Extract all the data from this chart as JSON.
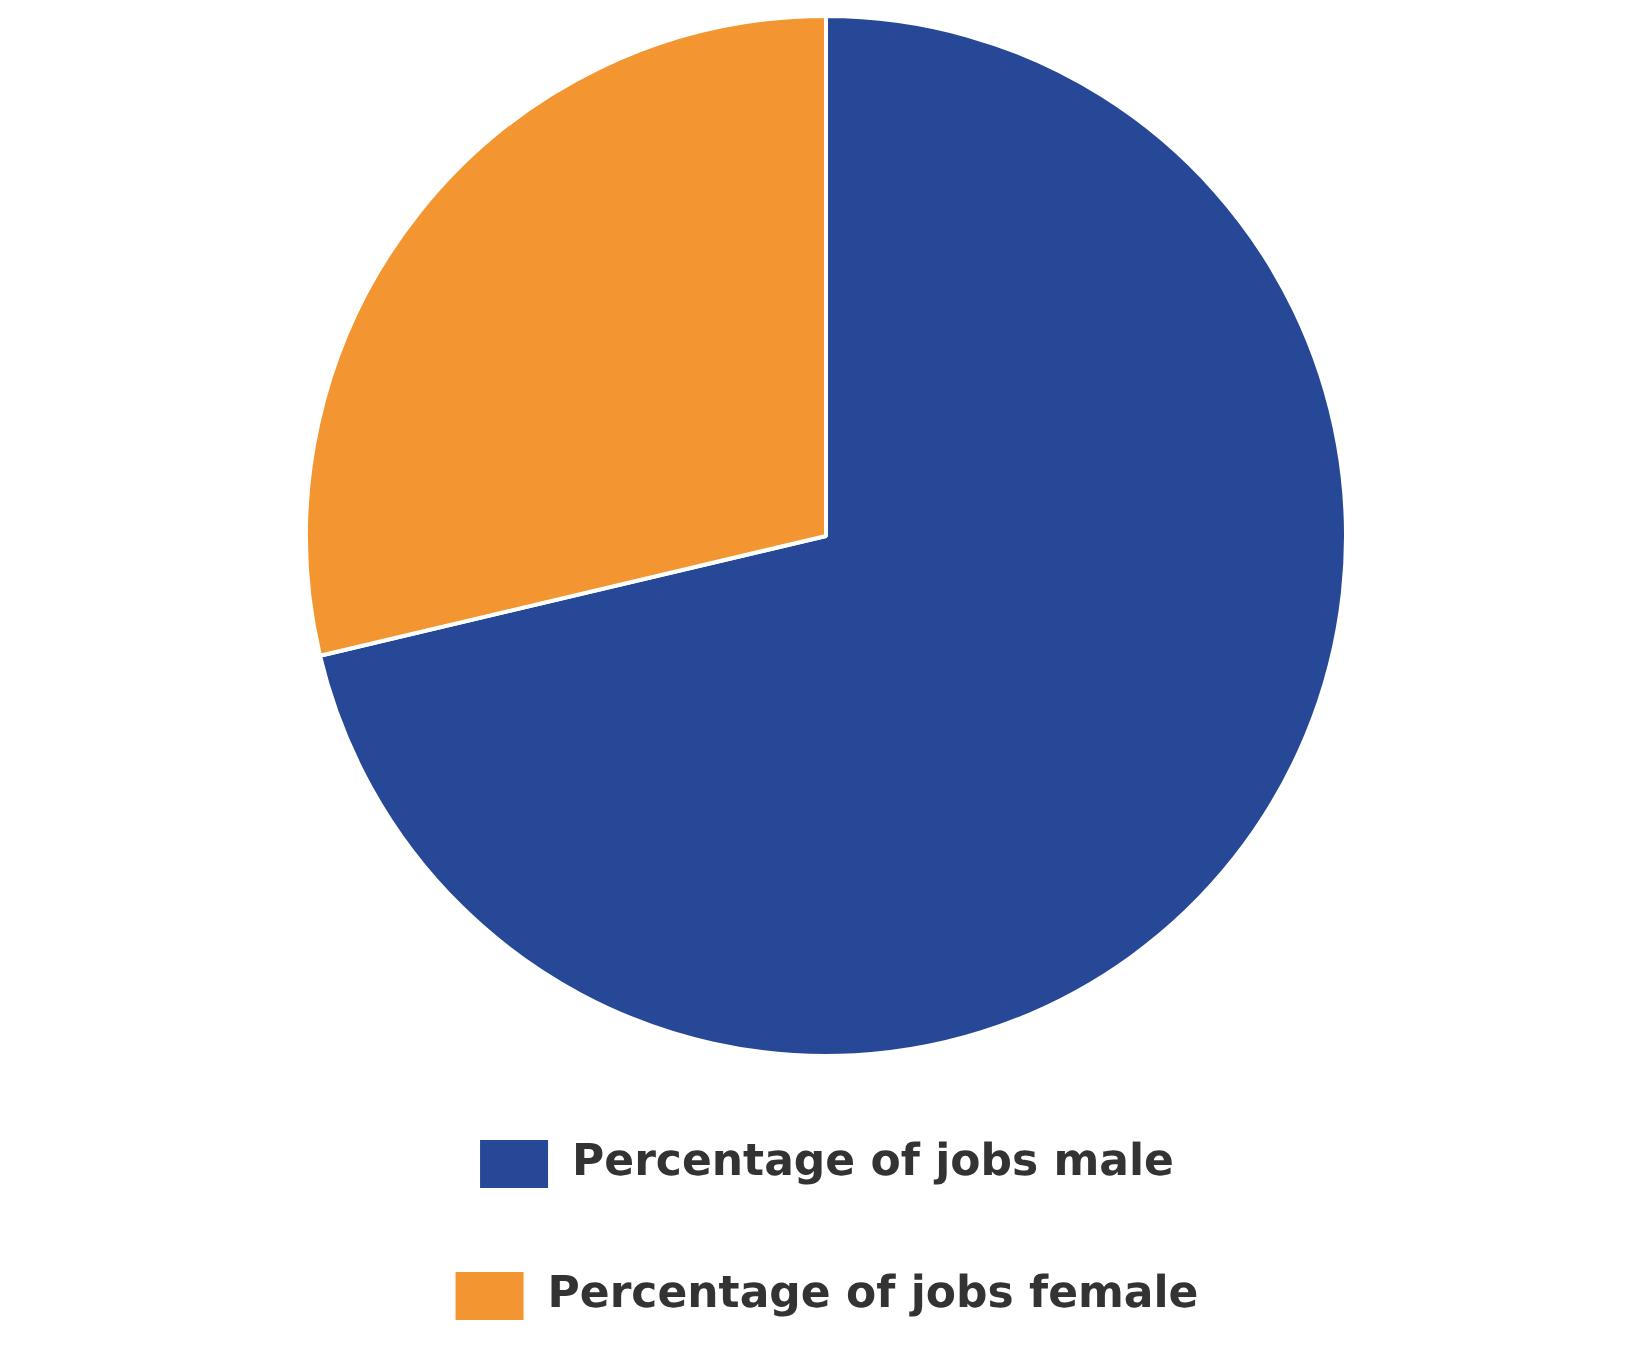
{
  "chart_data": {
    "type": "pie",
    "categories": [
      "Percentage of jobs male",
      "Percentage of jobs female"
    ],
    "values": [
      71.3,
      28.7
    ],
    "colors": [
      "#274896",
      "#f39530"
    ],
    "legend": "bottom"
  }
}
